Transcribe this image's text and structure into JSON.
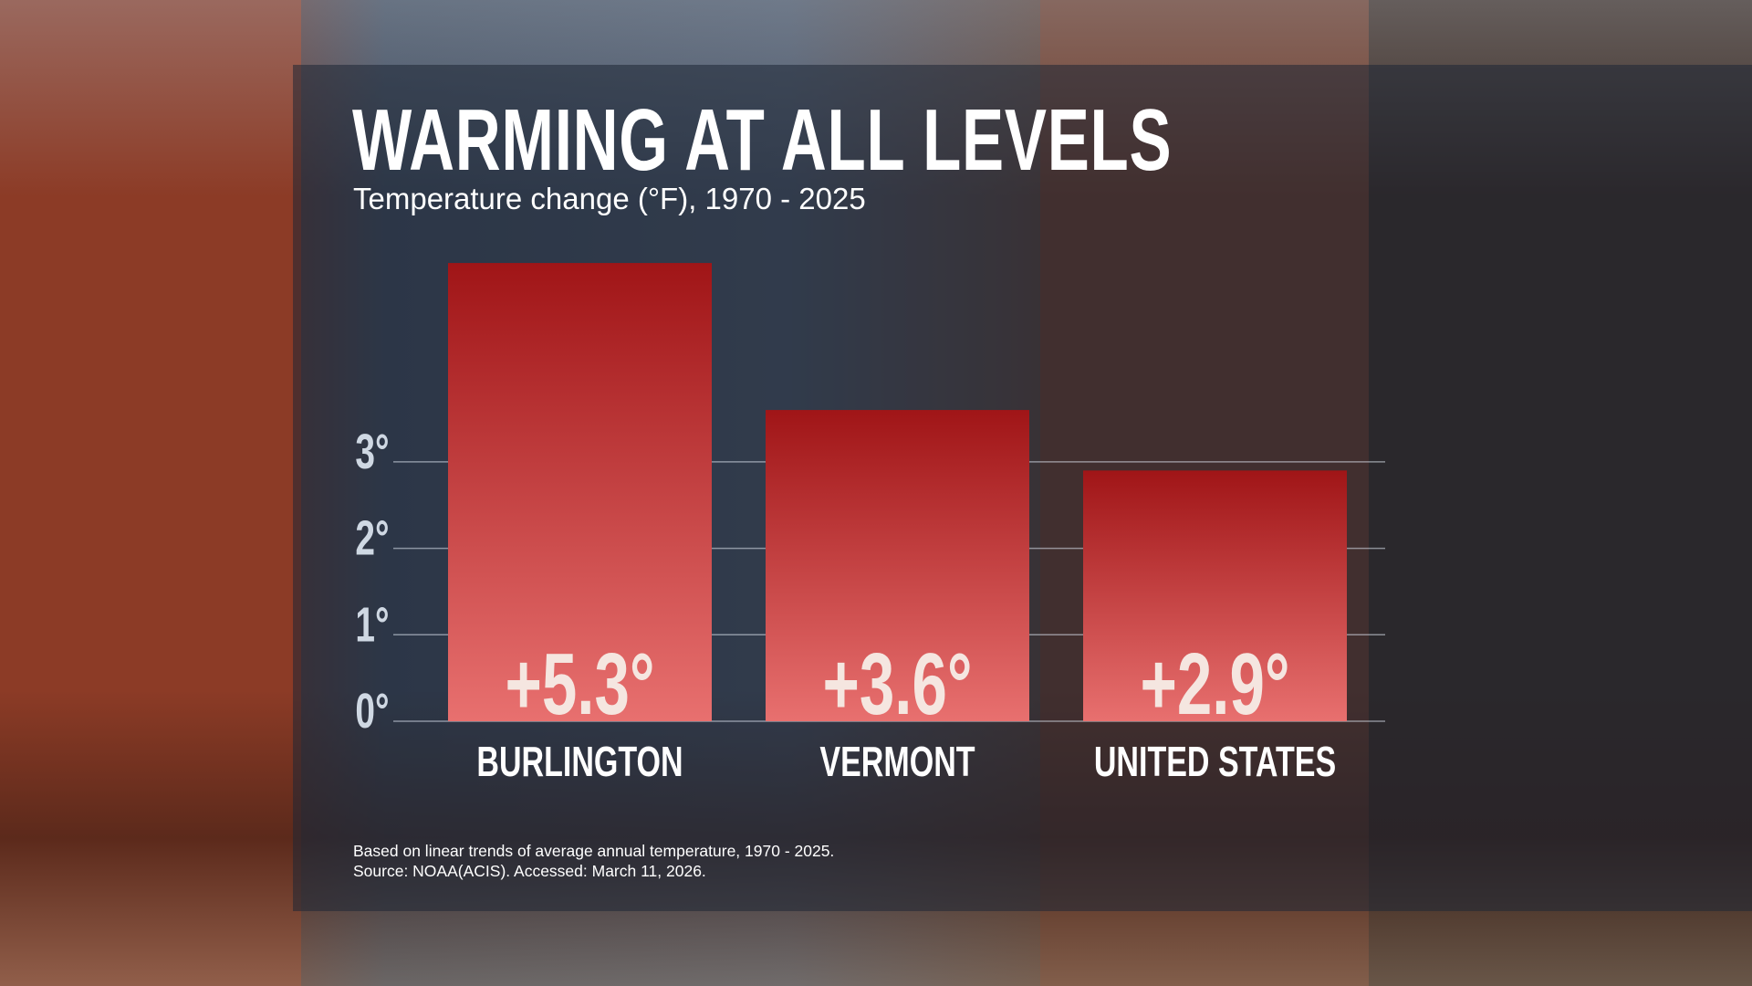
{
  "title": "WARMING AT ALL LEVELS",
  "subtitle": "Temperature change (°F), 1970 - 2025",
  "footnote": {
    "line1": "Based on linear trends of average annual temperature, 1970 - 2025.",
    "line2": "Source: NOAA(ACIS). Accessed: March 11, 2026."
  },
  "chart_data": {
    "type": "bar",
    "title": "WARMING AT ALL LEVELS",
    "subtitle": "Temperature change (°F), 1970 - 2025",
    "categories": [
      "BURLINGTON",
      "VERMONT",
      "UNITED STATES"
    ],
    "values": [
      5.3,
      3.6,
      2.9
    ],
    "data_labels": [
      "+5.3°",
      "+3.6°",
      "+2.9°"
    ],
    "yticks": [
      0,
      1,
      2,
      3
    ],
    "ytick_labels": [
      "0°",
      "1°",
      "2°",
      "3°"
    ],
    "ylim": [
      0,
      5.3
    ],
    "grid": true,
    "colors": {
      "bar_top": "#a01517",
      "bar_bottom": "#e8706f",
      "label": "#f5e6e0",
      "axis": "#cfd8e3"
    }
  }
}
